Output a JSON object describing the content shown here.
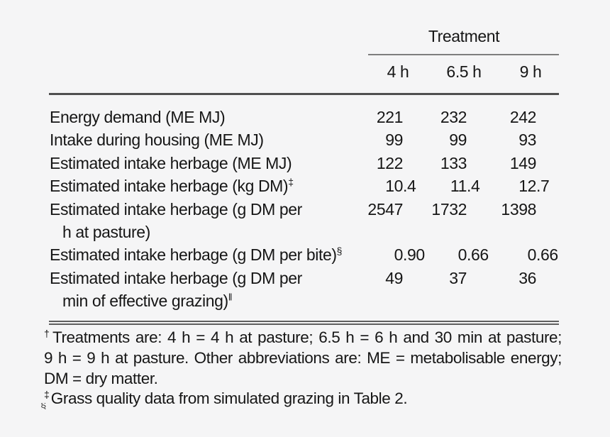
{
  "colors": {
    "background": "#f5f5f6",
    "text": "#161616",
    "rule_dark": "#4f4f4f",
    "rule_light": "#7e7e7e"
  },
  "table": {
    "header": {
      "group_label": "Treatment",
      "columns": [
        "4 h",
        "6.5 h",
        "9 h"
      ]
    },
    "rows": [
      {
        "label": "Energy demand (ME MJ)",
        "label_sup": "",
        "label2": "",
        "label2_sup": "",
        "values": [
          "221",
          "232",
          "242"
        ]
      },
      {
        "label": "Intake during housing (ME MJ)",
        "label_sup": "",
        "label2": "",
        "label2_sup": "",
        "values": [
          "99",
          "99",
          "93"
        ]
      },
      {
        "label": "Estimated intake herbage (ME MJ)",
        "label_sup": "",
        "label2": "",
        "label2_sup": "",
        "values": [
          "122",
          "133",
          "149"
        ]
      },
      {
        "label": "Estimated intake herbage (kg DM)",
        "label_sup": "‡",
        "label2": "",
        "label2_sup": "",
        "values": [
          "10.4",
          "11.4",
          "12.7"
        ]
      },
      {
        "label": "Estimated intake herbage (g DM per",
        "label_sup": "",
        "label2": "h at pasture)",
        "label2_sup": "",
        "values": [
          "2547",
          "1732",
          "1398"
        ]
      },
      {
        "label": "Estimated intake herbage (g DM per bite)",
        "label_sup": "§",
        "label2": "",
        "label2_sup": "",
        "values": [
          "0.90",
          "0.66",
          "0.66"
        ]
      },
      {
        "label": "Estimated intake herbage (g DM per",
        "label_sup": "",
        "label2": "min of effective grazing)",
        "label2_sup": "‖",
        "values": [
          "49",
          "37",
          "36"
        ]
      }
    ]
  },
  "footnotes": [
    {
      "marker": "†",
      "lines": [
        "Treatments are: 4 h = 4 h at pasture; 6.5 h = 6 h and 30 min at pasture;",
        "9 h = 9 h at pasture. Other abbreviations are: ME = metabolisable energy;",
        "DM = dry matter."
      ]
    },
    {
      "marker": "‡",
      "lines": [
        "Grass quality data from simulated grazing in Table 2."
      ]
    }
  ],
  "cropped_marker": "§"
}
